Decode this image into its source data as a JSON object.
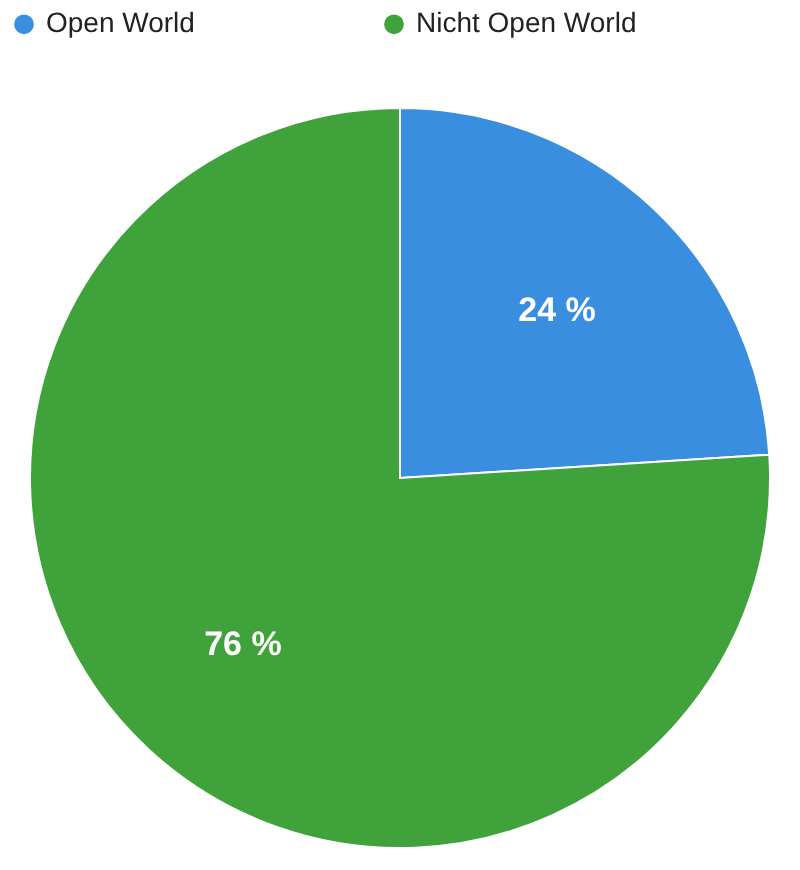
{
  "chart_data": {
    "type": "pie",
    "categories": [
      "Open World",
      "Nicht Open World"
    ],
    "values": [
      24,
      76
    ],
    "colors": [
      "#3a8ee0",
      "#3fa23a"
    ],
    "value_labels": [
      "24 %",
      "76 %"
    ],
    "legend": "top"
  }
}
